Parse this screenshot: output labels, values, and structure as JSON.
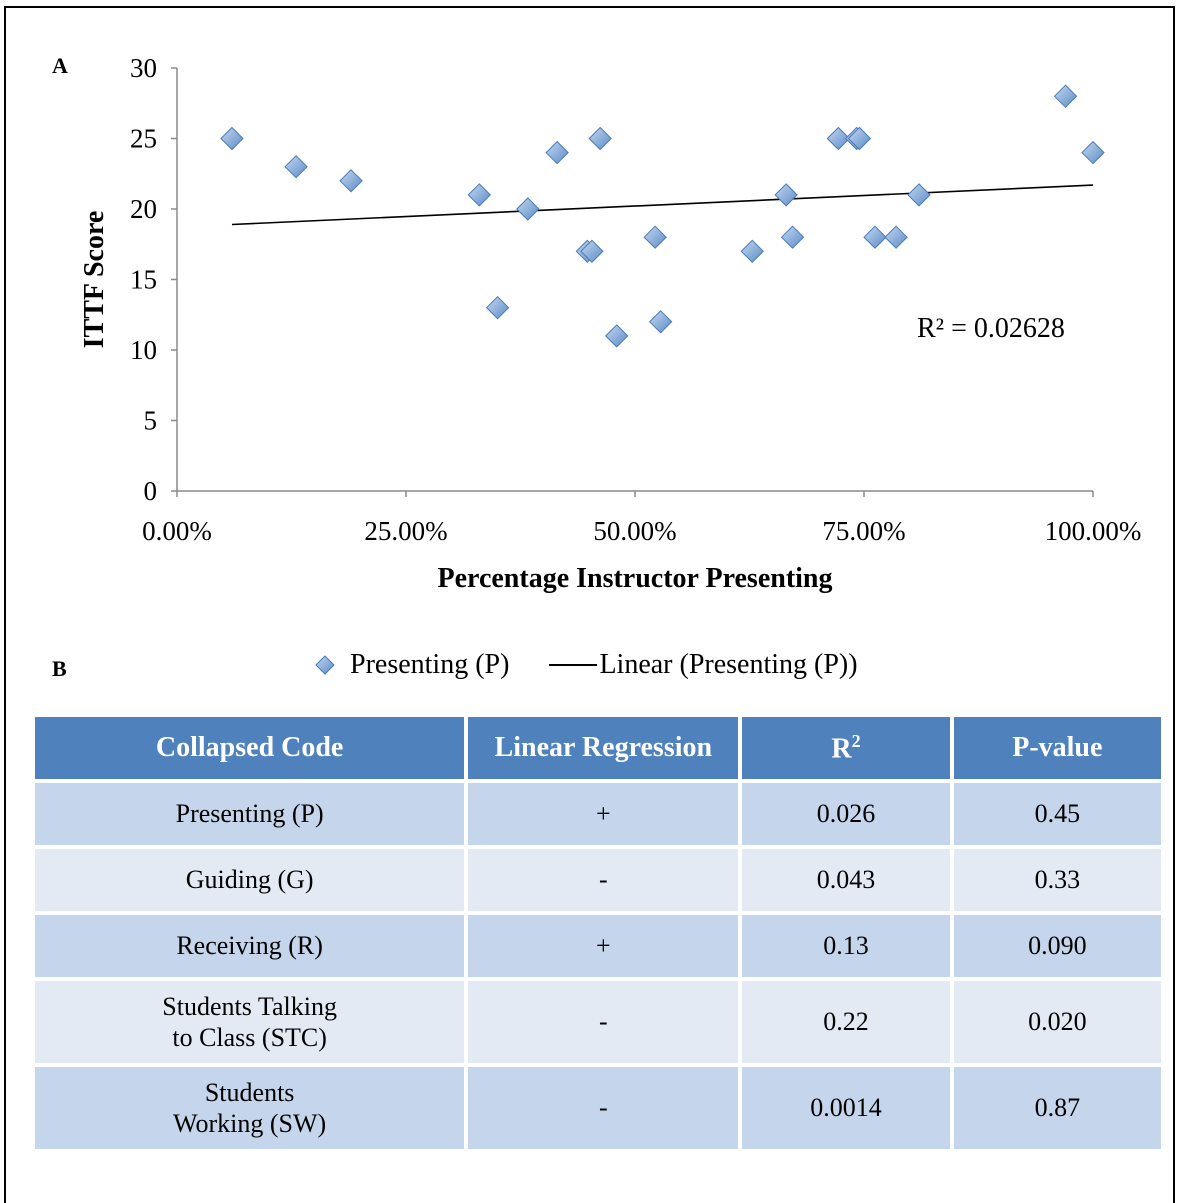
{
  "chart_data": {
    "type": "scatter",
    "panel_label": "A",
    "xlabel": "Percentage Instructor Presenting",
    "ylabel": "ITTF Score",
    "xlim": [
      0,
      1
    ],
    "ylim": [
      0,
      30
    ],
    "x_ticks": [
      0,
      0.25,
      0.5,
      0.75,
      1.0
    ],
    "x_tick_labels": [
      "0.00%",
      "25.00%",
      "50.00%",
      "75.00%",
      "100.00%"
    ],
    "y_ticks": [
      0,
      5,
      10,
      15,
      20,
      25,
      30
    ],
    "y_tick_labels": [
      "0",
      "5",
      "10",
      "15",
      "20",
      "25",
      "30"
    ],
    "grid": false,
    "legend_position": "bottom",
    "series": [
      {
        "name": "Presenting (P)",
        "marker": "diamond",
        "color": "#4f81bd",
        "points": [
          {
            "x": 0.06,
            "y": 25
          },
          {
            "x": 0.13,
            "y": 23
          },
          {
            "x": 0.19,
            "y": 22
          },
          {
            "x": 0.33,
            "y": 21
          },
          {
            "x": 0.35,
            "y": 13
          },
          {
            "x": 0.383,
            "y": 20
          },
          {
            "x": 0.415,
            "y": 24
          },
          {
            "x": 0.448,
            "y": 17
          },
          {
            "x": 0.453,
            "y": 17
          },
          {
            "x": 0.462,
            "y": 25
          },
          {
            "x": 0.48,
            "y": 11
          },
          {
            "x": 0.522,
            "y": 18
          },
          {
            "x": 0.528,
            "y": 12
          },
          {
            "x": 0.628,
            "y": 17
          },
          {
            "x": 0.665,
            "y": 21
          },
          {
            "x": 0.672,
            "y": 18
          },
          {
            "x": 0.722,
            "y": 25
          },
          {
            "x": 0.742,
            "y": 25
          },
          {
            "x": 0.745,
            "y": 25
          },
          {
            "x": 0.762,
            "y": 18
          },
          {
            "x": 0.785,
            "y": 18
          },
          {
            "x": 0.81,
            "y": 21
          },
          {
            "x": 0.97,
            "y": 28
          },
          {
            "x": 1.0,
            "y": 24
          }
        ]
      },
      {
        "name": "Linear (Presenting (P))",
        "type": "line",
        "color": "#000000",
        "points": [
          {
            "x": 0.06,
            "y": 18.9
          },
          {
            "x": 1.0,
            "y": 21.7
          }
        ]
      }
    ],
    "annotations": [
      {
        "text": "R² = 0.02628"
      }
    ]
  },
  "table": {
    "panel_label": "B",
    "headers": [
      "Collapsed Code",
      "Linear Regression",
      "R",
      "P-value"
    ],
    "r_superscript": "2",
    "rows": [
      [
        "Presenting (P)",
        "+",
        "0.026",
        "0.45"
      ],
      [
        "Guiding (G)",
        "-",
        "0.043",
        "0.33"
      ],
      [
        "Receiving (R)",
        "+",
        "0.13",
        "0.090"
      ],
      [
        [
          "Students Talking",
          "to Class (STC)"
        ],
        "-",
        "0.22",
        "0.020"
      ],
      [
        [
          "Students",
          "Working (SW)"
        ],
        "-",
        "0.0014",
        "0.87"
      ]
    ]
  },
  "colors": {
    "accent": "#4f81bd",
    "marker_fill": "#8db3e2",
    "row_dark": "#c5d5ec",
    "row_light": "#e4eaf4"
  }
}
